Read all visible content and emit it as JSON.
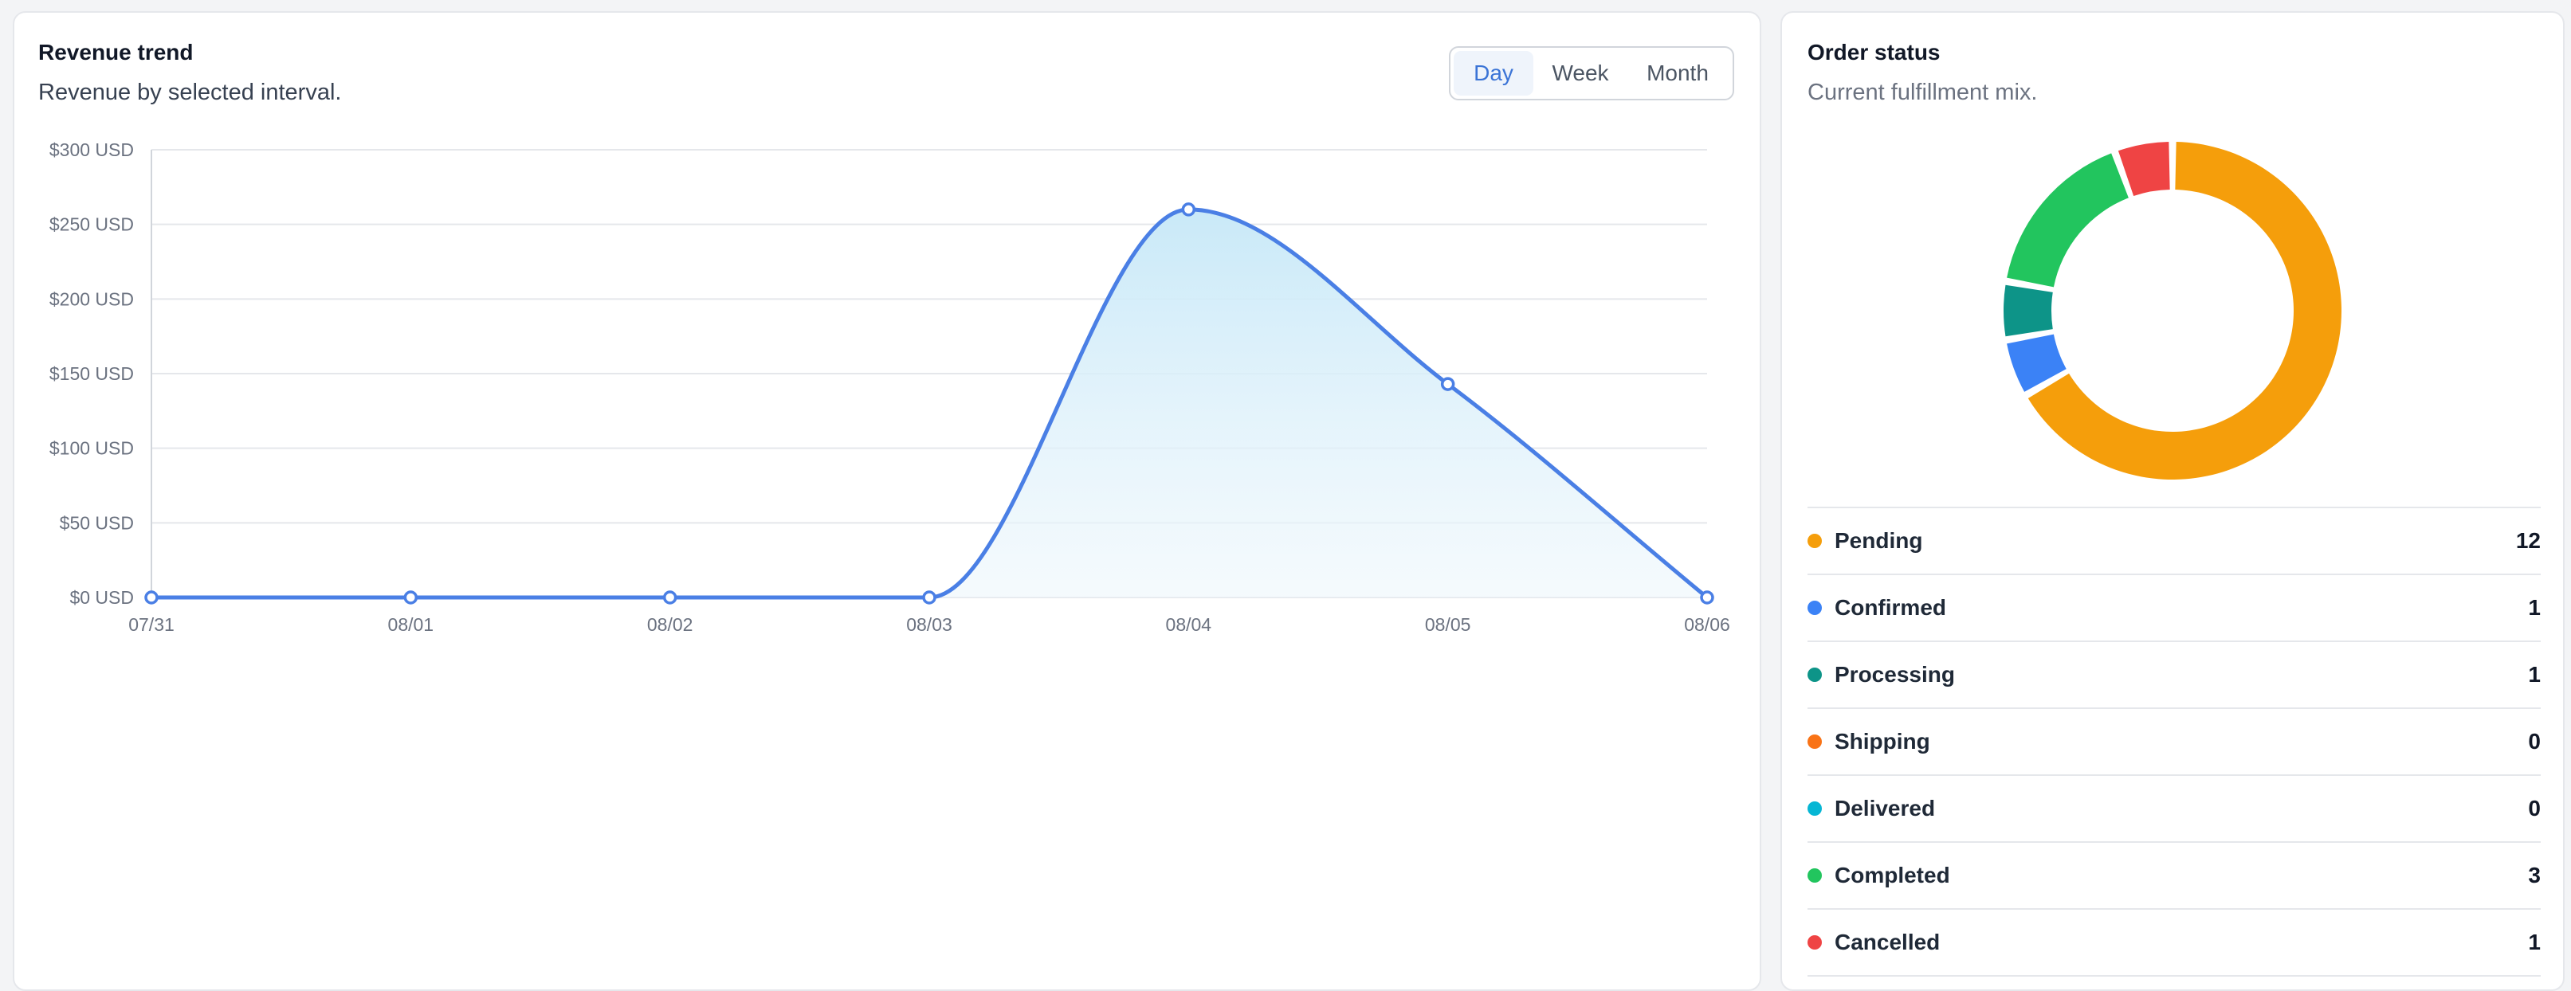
{
  "revenue_card": {
    "title": "Revenue trend",
    "subtitle": "Revenue by selected interval.",
    "intervals": [
      "Day",
      "Week",
      "Month"
    ],
    "active_interval": "Day"
  },
  "chart_data": {
    "type": "area",
    "title": "Revenue trend",
    "x": [
      "07/31",
      "08/01",
      "08/02",
      "08/03",
      "08/04",
      "08/05",
      "08/06"
    ],
    "values": [
      0,
      0,
      0,
      0,
      260,
      143,
      0
    ],
    "ylim": [
      0,
      300
    ],
    "yticks": [
      "$0 USD",
      "$50 USD",
      "$100 USD",
      "$150 USD",
      "$200 USD",
      "$250 USD",
      "$300 USD"
    ],
    "line_color": "#4a7fe5",
    "fill_color": "#c9e9f8",
    "grid": true
  },
  "status_card": {
    "title": "Order status",
    "subtitle": "Current fulfillment mix.",
    "items": [
      {
        "label": "Pending",
        "count": "12",
        "value": 12,
        "color": "#f59e0b"
      },
      {
        "label": "Confirmed",
        "count": "1",
        "value": 1,
        "color": "#3b82f6"
      },
      {
        "label": "Processing",
        "count": "1",
        "value": 1,
        "color": "#0d9488"
      },
      {
        "label": "Shipping",
        "count": "0",
        "value": 0,
        "color": "#f97316"
      },
      {
        "label": "Delivered",
        "count": "0",
        "value": 0,
        "color": "#06b6d4"
      },
      {
        "label": "Completed",
        "count": "3",
        "value": 3,
        "color": "#22c55e"
      },
      {
        "label": "Cancelled",
        "count": "1",
        "value": 1,
        "color": "#ef4444"
      }
    ]
  }
}
